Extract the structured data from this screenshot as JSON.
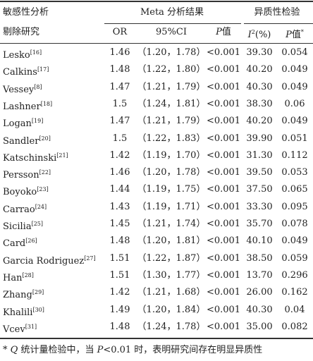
{
  "table": {
    "header": {
      "group_left": [
        "敏感性分析",
        "剔除研究"
      ],
      "group_meta": "Meta 分析结果",
      "group_het": "异质性检验",
      "columns": [
        {
          "parts": [
            {
              "text": "OR"
            }
          ]
        },
        {
          "parts": [
            {
              "text": "95%CI"
            }
          ]
        },
        {
          "parts": [
            {
              "text": "P",
              "style": "italic"
            },
            {
              "text": "值"
            }
          ]
        },
        {
          "parts": [
            {
              "text": "I",
              "style": "italic"
            },
            {
              "text": "2",
              "style": "sup"
            },
            {
              "text": "(%)"
            }
          ]
        },
        {
          "parts": [
            {
              "text": "P",
              "style": "italic"
            },
            {
              "text": "值"
            },
            {
              "text": "*",
              "style": "sup"
            }
          ]
        }
      ]
    },
    "rows": [
      {
        "study": "Lesko",
        "ref": "[16]",
        "or": "1.46",
        "ci": "（1.20，1.78）",
        "p": "<0.001",
        "i2": "39.30",
        "p_het": "0.054"
      },
      {
        "study": "Calkins",
        "ref": "[17]",
        "or": "1.48",
        "ci": "（1.22，1.80）",
        "p": "<0.001",
        "i2": "40.20",
        "p_het": "0.049"
      },
      {
        "study": "Vessey",
        "ref": "[8]",
        "or": "1.47",
        "ci": "（1.21，1.79）",
        "p": "<0.001",
        "i2": "40.30",
        "p_het": "0.049"
      },
      {
        "study": "Lashner",
        "ref": "[18]",
        "or": "1.5",
        "ci": "（1.24，1.81）",
        "p": "<0.001",
        "i2": "38.30",
        "p_het": "0.06"
      },
      {
        "study": "Logan",
        "ref": "[19]",
        "or": "1.47",
        "ci": "（1.21，1.79）",
        "p": "<0.001",
        "i2": "40.20",
        "p_het": "0.049"
      },
      {
        "study": "Sandler",
        "ref": "[20]",
        "or": "1.5",
        "ci": "（1.22，1.83）",
        "p": "<0.001",
        "i2": "39.90",
        "p_het": "0.051"
      },
      {
        "study": "Katschinski",
        "ref": "[21]",
        "or": "1.42",
        "ci": "（1.19，1.70）",
        "p": "<0.001",
        "i2": "31.30",
        "p_het": "0.112"
      },
      {
        "study": "Persson",
        "ref": "[22]",
        "or": "1.46",
        "ci": "（1.20，1.78）",
        "p": "<0.001",
        "i2": "39.50",
        "p_het": "0.053"
      },
      {
        "study": "Boyoko",
        "ref": "[23]",
        "or": "1.44",
        "ci": "（1.19，1.75）",
        "p": "<0.001",
        "i2": "37.50",
        "p_het": "0.065"
      },
      {
        "study": "Carrao",
        "ref": "[24]",
        "or": "1.43",
        "ci": "（1.19，1.71）",
        "p": "<0.001",
        "i2": "33.30",
        "p_het": "0.095"
      },
      {
        "study": "Sicilia",
        "ref": "[25]",
        "or": "1.45",
        "ci": "（1.21，1.74）",
        "p": "<0.001",
        "i2": "35.70",
        "p_het": "0.078"
      },
      {
        "study": "Card",
        "ref": "[26]",
        "or": "1.48",
        "ci": "（1.20，1.81）",
        "p": "<0.001",
        "i2": "40.10",
        "p_het": "0.049"
      },
      {
        "study": "Garcia Rodriguez",
        "ref": "[27]",
        "or": "1.51",
        "ci": "（1.22，1.87）",
        "p": "<0.001",
        "i2": "38.50",
        "p_het": "0.059"
      },
      {
        "study": "Han",
        "ref": "[28]",
        "or": "1.51",
        "ci": "（1.30，1.77）",
        "p": "<0.001",
        "i2": "13.70",
        "p_het": "0.296"
      },
      {
        "study": "Zhang",
        "ref": "[29]",
        "or": "1.42",
        "ci": "（1.21，1.68）",
        "p": "<0.001",
        "i2": "26.00",
        "p_het": "0.162"
      },
      {
        "study": "Khalili",
        "ref": "[30]",
        "or": "1.49",
        "ci": "（1.20，1.84）",
        "p": "<0.001",
        "i2": "40.30",
        "p_het": "0.04"
      },
      {
        "study": "Vcev",
        "ref": "[31]",
        "or": "1.48",
        "ci": "（1.24，1.78）",
        "p": "<0.001",
        "i2": "35.00",
        "p_het": "0.082"
      }
    ],
    "footnote": [
      {
        "text": "* "
      },
      {
        "text": "Q",
        "style": "italic"
      },
      {
        "text": " 统计量检验中，当 "
      },
      {
        "text": "P",
        "style": "italic"
      },
      {
        "text": "<0.01 时，表明研究间存在明显异质性"
      }
    ]
  }
}
